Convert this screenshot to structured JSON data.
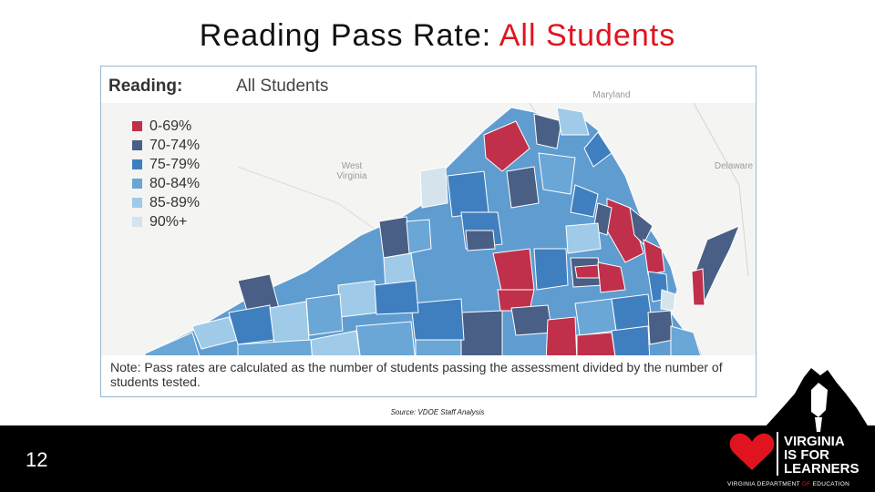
{
  "slide": {
    "title_prefix": "Reading Pass Rate: ",
    "title_accent": "All Students",
    "page_number": "12",
    "source": "Source: VDOE Staff Analysis"
  },
  "map": {
    "header_label": "Reading:",
    "header_value": "All Students",
    "place_labels": [
      "Maryland",
      "West Virginia",
      "Delaware"
    ],
    "legend": [
      {
        "label": "0-69%",
        "color": "#c0304a"
      },
      {
        "label": "70-74%",
        "color": "#4a5f86"
      },
      {
        "label": "75-79%",
        "color": "#3f7fbf"
      },
      {
        "label": "80-84%",
        "color": "#6aa6d6"
      },
      {
        "label": "85-89%",
        "color": "#9fcbe8"
      },
      {
        "label": "90%+",
        "color": "#d5e3ec"
      }
    ],
    "note": "Note: Pass rates are calculated as the number of students passing the assessment divided by the number of students tested."
  },
  "logo": {
    "line1": "VIRGINIA",
    "line2": "IS FOR",
    "line3": "LEARNERS",
    "dept_before": "VIRGINIA DEPARTMENT ",
    "dept_of": "OF",
    "dept_after": " EDUCATION",
    "heart_color": "#e0141e"
  }
}
